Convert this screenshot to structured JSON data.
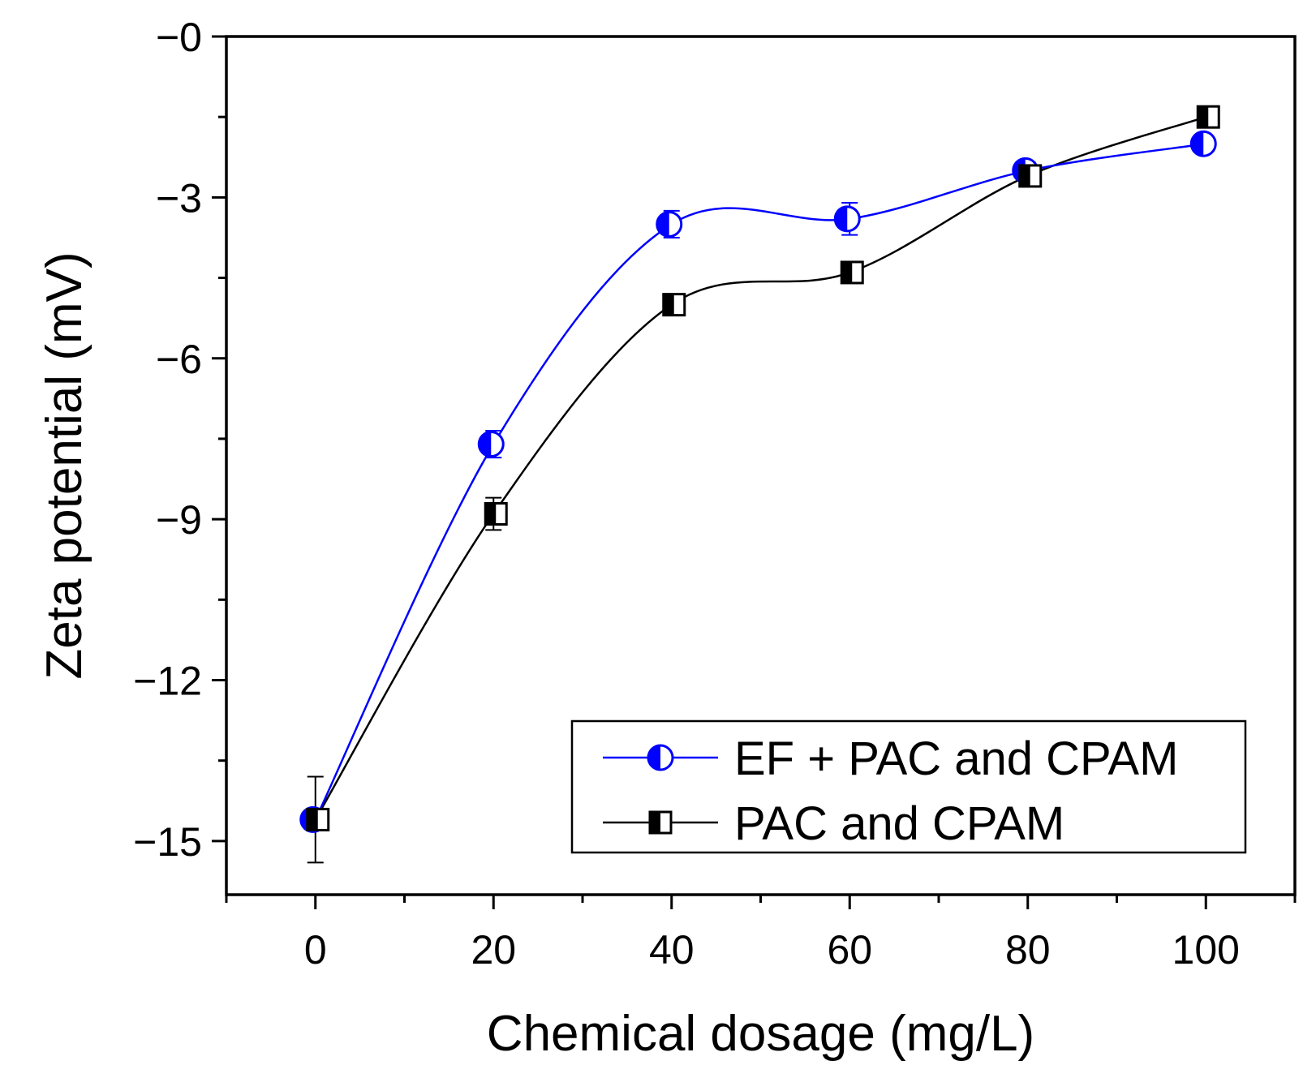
{
  "chart_data": {
    "type": "line",
    "title": "",
    "xlabel": "Chemical dosage (mg/L)",
    "ylabel": "Zeta potential (mV)",
    "xlim": [
      -10,
      110
    ],
    "ylim": [
      -16,
      0
    ],
    "x_ticks": [
      0,
      20,
      40,
      60,
      80,
      100
    ],
    "x_tick_labels": [
      "0",
      "20",
      "40",
      "60",
      "80",
      "100"
    ],
    "y_ticks": [
      0,
      -3,
      -6,
      -9,
      -12,
      -15
    ],
    "y_tick_labels": [
      "−0",
      "−3",
      "−6",
      "−9",
      "−12",
      "−15"
    ],
    "grid": false,
    "legend_position": "bottom-right",
    "x": [
      0,
      20,
      40,
      60,
      80,
      100
    ],
    "series": [
      {
        "name": "EF + PAC and CPAM",
        "color": "#0000ff",
        "marker": "half-filled-circle",
        "values": [
          -14.6,
          -7.6,
          -3.5,
          -3.4,
          -2.5,
          -2.0
        ],
        "errors": [
          0.1,
          0.25,
          0.25,
          0.3,
          0.15,
          0.1
        ]
      },
      {
        "name": "PAC and CPAM",
        "color": "#000000",
        "marker": "half-filled-square",
        "values": [
          -14.6,
          -8.9,
          -5.0,
          -4.4,
          -2.6,
          -1.5
        ],
        "errors": [
          0.8,
          0.3,
          0.1,
          0.1,
          0.1,
          0.1
        ]
      }
    ]
  }
}
